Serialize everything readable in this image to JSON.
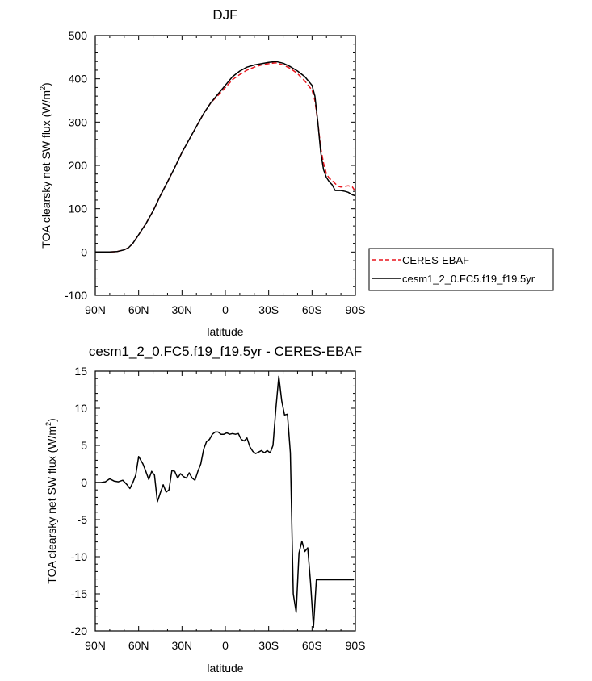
{
  "chart_data": [
    {
      "type": "line",
      "title": "DJF",
      "xlabel": "latitude",
      "ylabel": "TOA clearsky net SW flux (W/m",
      "ylabel_sup": "2",
      "ylabel_close": ")",
      "xlim": [
        -90,
        90
      ],
      "ylim": [
        -100,
        500
      ],
      "x_ticks": [
        -90,
        -60,
        -30,
        0,
        30,
        60,
        90
      ],
      "x_tick_labels": [
        "90N",
        "60N",
        "30N",
        "0",
        "30S",
        "60S",
        "90S"
      ],
      "y_ticks": [
        -100,
        0,
        100,
        200,
        300,
        400,
        500
      ],
      "y_tick_labels": [
        "-100",
        "0",
        "100",
        "200",
        "300",
        "400",
        "500"
      ],
      "legend_position": "right",
      "series": [
        {
          "name": "CERES-EBAF",
          "color": "#e8141c",
          "dash": "dashed",
          "x": [
            -90,
            -80,
            -75,
            -70,
            -67,
            -64,
            -61,
            -58,
            -55,
            -50,
            -45,
            -40,
            -35,
            -30,
            -25,
            -20,
            -15,
            -10,
            -5,
            0,
            5,
            10,
            15,
            20,
            25,
            30,
            35,
            40,
            45,
            50,
            55,
            60,
            62,
            64,
            66,
            68,
            70,
            72,
            74,
            76,
            78,
            80,
            83,
            85,
            88,
            90
          ],
          "y": [
            0,
            0,
            1,
            5,
            10,
            20,
            35,
            50,
            65,
            95,
            130,
            162,
            195,
            230,
            260,
            290,
            320,
            345,
            362,
            380,
            398,
            410,
            420,
            427,
            432,
            435,
            437,
            432,
            424,
            412,
            395,
            374,
            350,
            300,
            240,
            205,
            180,
            170,
            165,
            158,
            152,
            150,
            152,
            153,
            150,
            140
          ]
        },
        {
          "name": "cesm1_2_0.FC5.f19_f19.5yr",
          "color": "#000000",
          "dash": "solid",
          "x": [
            -90,
            -80,
            -75,
            -70,
            -67,
            -64,
            -61,
            -58,
            -55,
            -50,
            -45,
            -40,
            -35,
            -30,
            -25,
            -20,
            -15,
            -10,
            -5,
            0,
            5,
            10,
            15,
            20,
            25,
            30,
            35,
            40,
            45,
            50,
            55,
            60,
            62,
            64,
            66,
            68,
            70,
            72,
            74,
            76,
            78,
            80,
            83,
            85,
            88,
            90
          ],
          "y": [
            0,
            0,
            1,
            5,
            10,
            20,
            35,
            50,
            65,
            95,
            130,
            162,
            195,
            230,
            260,
            290,
            320,
            345,
            365,
            385,
            405,
            418,
            427,
            432,
            435,
            438,
            440,
            436,
            428,
            418,
            405,
            385,
            360,
            300,
            230,
            190,
            172,
            162,
            155,
            142,
            142,
            142,
            140,
            138,
            132,
            130
          ]
        }
      ]
    },
    {
      "type": "line",
      "title": "cesm1_2_0.FC5.f19_f19.5yr - CERES-EBAF",
      "xlabel": "latitude",
      "ylabel": "TOA clearsky net SW flux (W/m",
      "ylabel_sup": "2",
      "ylabel_close": ")",
      "xlim": [
        -90,
        90
      ],
      "ylim": [
        -20,
        15
      ],
      "x_ticks": [
        -90,
        -60,
        -30,
        0,
        30,
        60,
        90
      ],
      "x_tick_labels": [
        "90N",
        "60N",
        "30N",
        "0",
        "30S",
        "60S",
        "90S"
      ],
      "y_ticks": [
        -20,
        -15,
        -10,
        -5,
        0,
        5,
        10,
        15
      ],
      "y_tick_labels": [
        "-20",
        "-15",
        "-10",
        "-5",
        "0",
        "5",
        "10",
        "15"
      ],
      "series": [
        {
          "color": "#000000",
          "x": [
            -90,
            -86,
            -83,
            -80,
            -77,
            -74,
            -71,
            -68,
            -66,
            -64,
            -62,
            -60,
            -57,
            -55,
            -53,
            -51,
            -49,
            -47,
            -45,
            -43,
            -41,
            -39,
            -37,
            -35,
            -33,
            -31,
            -29,
            -27,
            -25,
            -23,
            -21,
            -19,
            -17,
            -15,
            -13,
            -11,
            -9,
            -7,
            -5,
            -3,
            -1,
            1,
            3,
            5,
            7,
            9,
            11,
            13,
            15,
            17,
            19,
            21,
            23,
            25,
            27,
            29,
            31,
            33,
            35,
            37,
            39,
            41,
            43,
            45,
            47,
            49,
            51,
            53,
            55,
            57,
            59,
            61,
            63,
            65,
            67,
            69,
            71,
            73,
            75,
            77,
            79,
            81,
            83,
            85,
            87,
            89
          ],
          "y": [
            0,
            0,
            0.1,
            0.5,
            0.2,
            0.1,
            0.3,
            -0.3,
            -0.8,
            0,
            1,
            3.5,
            2.5,
            1.5,
            0.4,
            1.5,
            1,
            -2.6,
            -1.4,
            -0.3,
            -1.3,
            -1,
            1.6,
            1.5,
            0.6,
            1.2,
            0.8,
            0.6,
            1.3,
            0.6,
            0.3,
            1.5,
            2.5,
            4.5,
            5.5,
            5.8,
            6.5,
            6.8,
            6.8,
            6.5,
            6.5,
            6.7,
            6.5,
            6.6,
            6.5,
            6.6,
            5.8,
            5.6,
            6,
            4.8,
            4.2,
            3.9,
            4.1,
            4.3,
            4,
            4.3,
            4,
            5,
            10,
            14.3,
            11,
            9.1,
            9.2,
            4,
            -15,
            -17.5,
            -9.5,
            -7.9,
            -9.3,
            -8.8,
            -13.5,
            -19.5,
            -13.1,
            -13.1,
            -13.1,
            -13.1,
            -13.1,
            -13.1,
            -13.1,
            -13.1,
            -13.1,
            -13.1,
            -13.1,
            -13.1,
            -13.1,
            -13.1
          ]
        }
      ]
    }
  ]
}
